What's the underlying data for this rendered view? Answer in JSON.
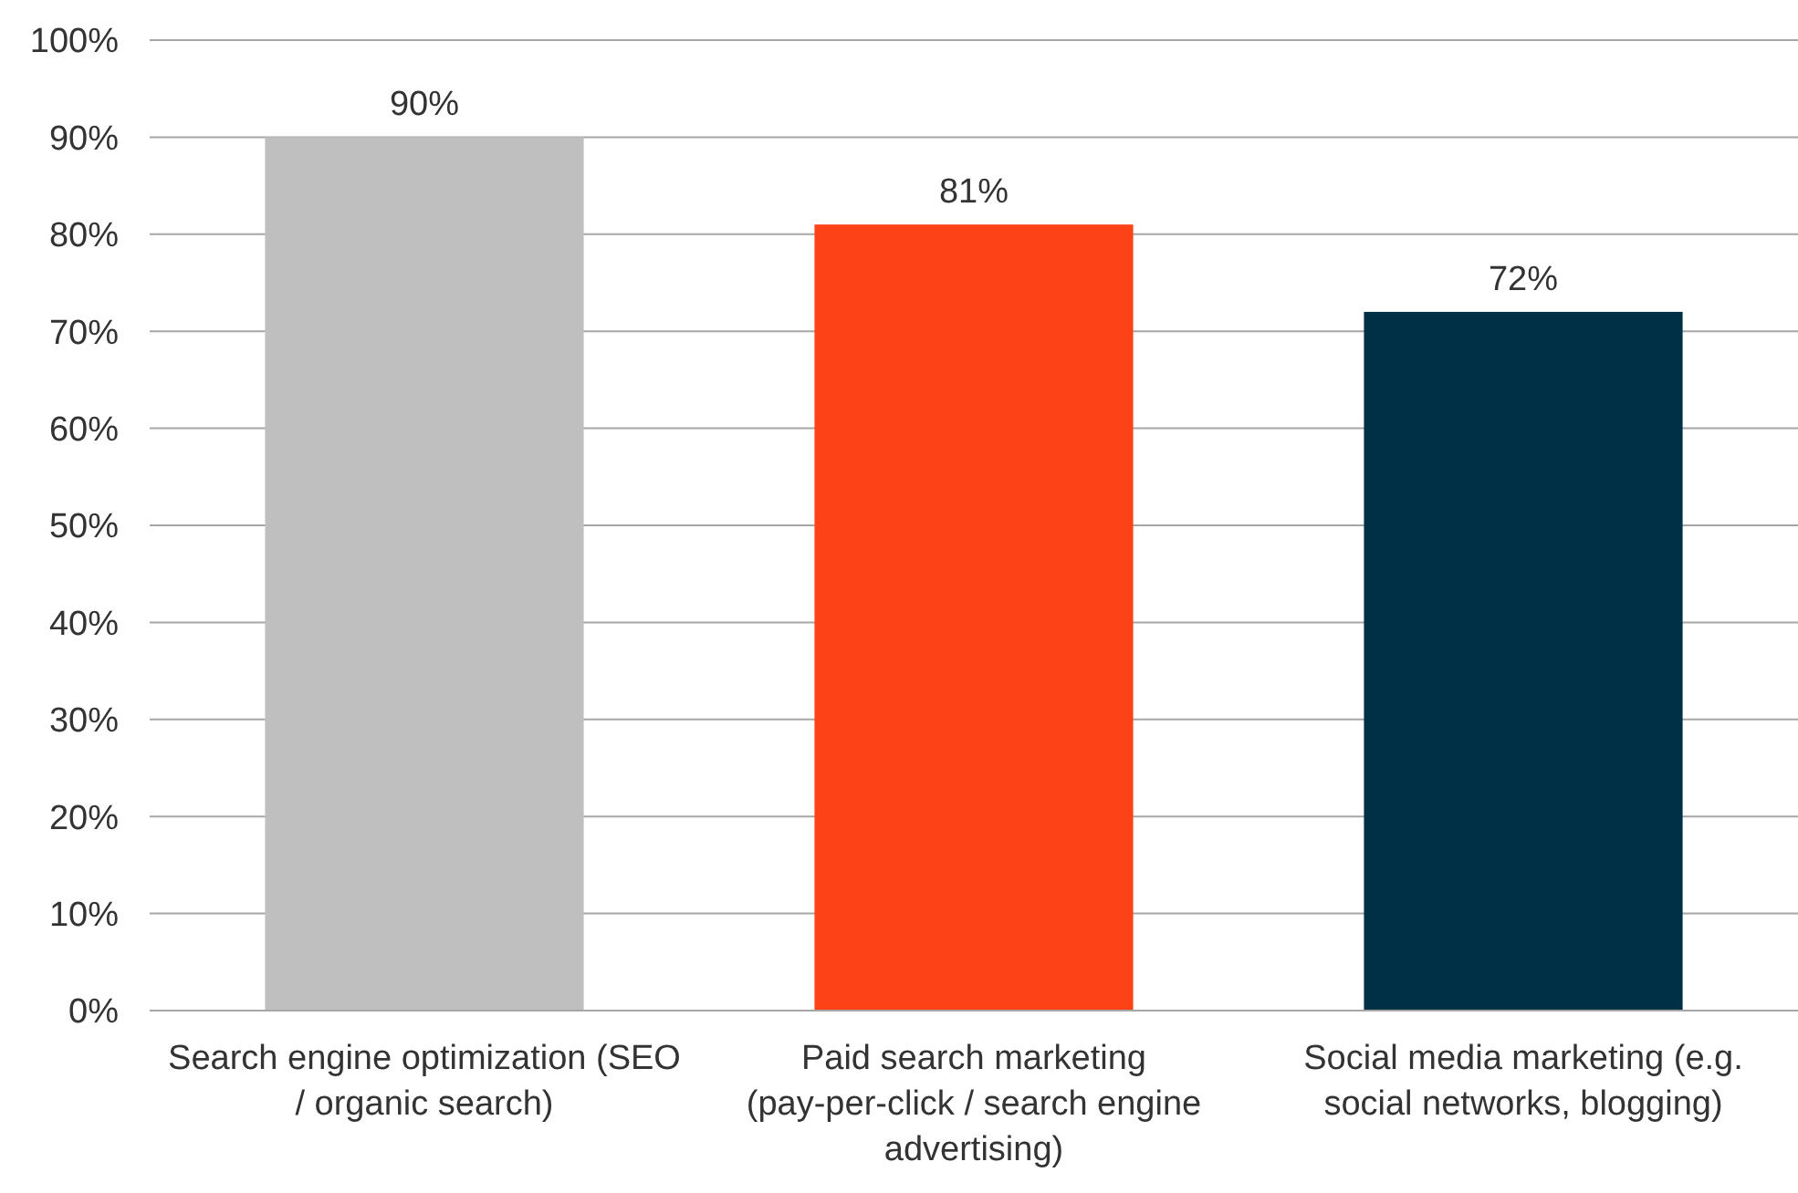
{
  "chart_data": {
    "type": "bar",
    "categories": [
      "Search engine optimization (SEO / organic search)",
      "Paid search marketing (pay-per-click / search engine advertising)",
      "Social media marketing (e.g. social networks, blogging)"
    ],
    "values": [
      90,
      81,
      72
    ],
    "colors": [
      "#bfbfbf",
      "#fc4216",
      "#003045"
    ],
    "ylim": [
      0,
      100
    ],
    "yticks": [
      {
        "value": 0,
        "label": "0%"
      },
      {
        "value": 10,
        "label": "10%"
      },
      {
        "value": 20,
        "label": "20%"
      },
      {
        "value": 30,
        "label": "30%"
      },
      {
        "value": 40,
        "label": "40%"
      },
      {
        "value": 50,
        "label": "50%"
      },
      {
        "value": 60,
        "label": "60%"
      },
      {
        "value": 70,
        "label": "70%"
      },
      {
        "value": 80,
        "label": "80%"
      },
      {
        "value": 90,
        "label": "90%"
      },
      {
        "value": 100,
        "label": "100%"
      }
    ],
    "value_labels": [
      "90%",
      "81%",
      "72%"
    ],
    "grid": "y"
  }
}
